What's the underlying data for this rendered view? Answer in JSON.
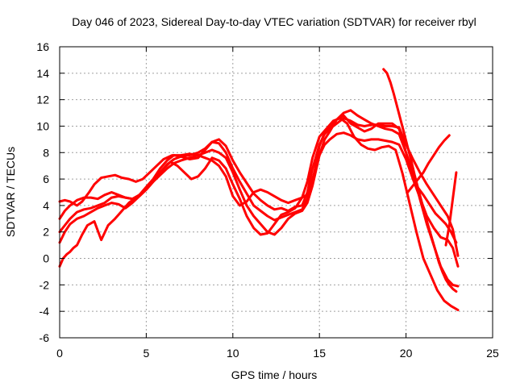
{
  "chart_data": {
    "type": "line",
    "title": "Day 046 of 2023, Sidereal Day-to-day VTEC variation (SDTVAR) for receiver rbyl",
    "xlabel": "GPS time / hours",
    "ylabel": "SDTVAR / TECUs",
    "xlim": [
      0,
      25
    ],
    "ylim": [
      -6,
      16
    ],
    "xticks": [
      0,
      5,
      10,
      15,
      20,
      25
    ],
    "yticks": [
      -6,
      -4,
      -2,
      0,
      2,
      4,
      6,
      8,
      10,
      12,
      14,
      16
    ],
    "grid": true,
    "legend": "none",
    "color": "#ff0000",
    "series": [
      {
        "x": [
          0.0,
          0.3,
          0.6,
          1.0,
          1.3,
          1.7,
          2.0,
          2.4,
          2.8,
          3.2,
          3.6,
          4.0,
          4.4,
          4.8,
          5.2,
          5.6,
          6.0,
          6.5,
          7.0,
          7.5,
          8.0,
          8.4,
          8.8,
          9.2,
          9.6,
          10.0,
          10.4,
          10.8,
          11.2,
          11.6,
          12.0,
          12.4,
          12.8,
          13.2,
          13.6,
          14.0,
          14.4,
          14.7,
          15.0,
          15.3,
          15.6,
          16.0,
          16.4,
          16.8,
          17.2,
          17.6,
          18.0,
          18.4,
          18.8,
          19.2,
          19.6,
          20.0,
          20.3,
          20.6,
          21.0,
          21.4,
          21.7,
          22.0,
          22.3,
          22.6,
          22.9
        ],
        "y": [
          4.3,
          4.4,
          4.3,
          4.0,
          4.3,
          5.0,
          5.6,
          6.1,
          6.2,
          6.3,
          6.1,
          6.0,
          5.8,
          6.0,
          6.5,
          7.0,
          7.5,
          7.8,
          7.8,
          7.9,
          7.8,
          7.6,
          7.4,
          7.0,
          6.2,
          4.7,
          4.0,
          4.3,
          5.0,
          5.2,
          5.0,
          4.7,
          4.4,
          4.2,
          4.4,
          4.6,
          4.9,
          6.5,
          8.5,
          9.5,
          10.0,
          10.5,
          10.8,
          10.2,
          9.9,
          9.6,
          9.8,
          10.2,
          10.2,
          10.2,
          9.8,
          8.0,
          6.5,
          5.5,
          4.8,
          4.0,
          3.4,
          3.0,
          2.6,
          2.0,
          1.2
        ]
      },
      {
        "x": [
          0.0,
          0.3,
          0.6,
          1.0,
          1.4,
          1.8,
          2.2,
          2.6,
          3.0,
          3.4,
          3.8,
          4.2,
          4.6,
          5.0,
          5.4,
          5.8,
          6.2,
          6.6,
          7.0,
          7.5,
          8.0,
          8.4,
          8.8,
          9.2,
          9.6,
          10.0,
          10.4,
          10.8,
          11.2,
          11.6,
          12.0,
          12.4,
          12.8,
          13.2,
          13.6,
          14.0,
          14.3,
          14.6,
          15.0,
          15.3,
          15.6,
          16.0,
          16.4,
          16.8,
          17.2,
          17.6,
          18.0,
          18.4,
          18.8,
          19.2,
          19.6,
          20.0,
          20.4,
          20.8,
          21.2,
          21.6,
          22.0,
          22.4,
          22.7,
          23.0
        ],
        "y": [
          3.0,
          3.6,
          4.0,
          4.4,
          4.6,
          4.6,
          4.5,
          4.8,
          5.0,
          4.8,
          4.6,
          4.5,
          4.7,
          5.2,
          5.8,
          6.5,
          7.1,
          7.5,
          7.7,
          7.8,
          8.0,
          8.3,
          8.8,
          8.7,
          8.0,
          6.8,
          5.8,
          4.9,
          4.0,
          3.6,
          3.2,
          2.9,
          3.1,
          3.3,
          3.5,
          3.7,
          4.5,
          6.0,
          7.8,
          8.6,
          9.0,
          9.4,
          9.5,
          9.3,
          9.0,
          8.9,
          9.0,
          9.0,
          8.9,
          8.8,
          8.6,
          7.5,
          6.0,
          4.6,
          3.2,
          2.3,
          1.6,
          1.4,
          0.8,
          -0.6
        ]
      },
      {
        "x": [
          0.0,
          0.3,
          0.6,
          1.0,
          1.4,
          1.8,
          2.2,
          2.6,
          3.0,
          3.4,
          3.8,
          4.2,
          4.6,
          5.0,
          5.4,
          5.8,
          6.2,
          6.6,
          7.0,
          7.5,
          8.0,
          8.4,
          8.8,
          9.2,
          9.6,
          10.0,
          10.4,
          10.8,
          11.2,
          11.6,
          12.0,
          12.4,
          12.8,
          13.2,
          13.6,
          14.0,
          14.3,
          14.6,
          15.0,
          15.3,
          15.6,
          16.0,
          16.4,
          16.8,
          17.2,
          17.6,
          18.0,
          18.4,
          18.8,
          19.2,
          19.6,
          20.0,
          20.4,
          20.8,
          21.2,
          21.6,
          22.0,
          22.4,
          22.7,
          23.0
        ],
        "y": [
          2.0,
          2.5,
          3.0,
          3.5,
          3.7,
          3.8,
          4.0,
          4.2,
          4.6,
          4.7,
          4.6,
          4.5,
          4.8,
          5.4,
          6.0,
          6.8,
          7.4,
          7.8,
          7.7,
          7.5,
          7.6,
          8.2,
          8.8,
          9.0,
          8.5,
          7.4,
          6.5,
          5.7,
          4.9,
          4.4,
          4.0,
          3.7,
          3.8,
          3.6,
          3.9,
          4.0,
          5.0,
          6.8,
          8.6,
          9.4,
          9.8,
          10.2,
          10.6,
          10.4,
          10.1,
          10.0,
          10.1,
          10.1,
          10.0,
          10.0,
          9.9,
          8.6,
          7.5,
          6.5,
          5.6,
          4.8,
          4.0,
          3.2,
          2.2,
          0.2
        ]
      },
      {
        "x": [
          0.0,
          0.3,
          0.6,
          1.0,
          1.4,
          1.8,
          2.2,
          2.6,
          3.0,
          3.4,
          3.8,
          4.2,
          4.6,
          5.0,
          5.4,
          5.8,
          6.2,
          6.6,
          7.0,
          7.5,
          8.0,
          8.4,
          8.8,
          9.2,
          9.6,
          10.0,
          10.4,
          10.8,
          11.2,
          11.6,
          12.0,
          12.4,
          12.8,
          13.2,
          13.6,
          14.0,
          14.3,
          14.6,
          15.0,
          15.3,
          15.6,
          16.0,
          16.4,
          16.8,
          17.2,
          17.6,
          18.0,
          18.4,
          18.8,
          19.2,
          19.6,
          20.0,
          20.4,
          20.8,
          21.2,
          21.6,
          22.0,
          22.4,
          22.7,
          23.0
        ],
        "y": [
          1.2,
          2.0,
          2.6,
          3.0,
          3.2,
          3.5,
          3.8,
          4.0,
          4.2,
          4.1,
          3.8,
          4.2,
          4.7,
          5.2,
          5.8,
          6.3,
          6.8,
          7.2,
          7.4,
          7.6,
          7.8,
          8.0,
          8.2,
          8.0,
          7.6,
          6.5,
          5.2,
          4.0,
          3.2,
          2.6,
          2.0,
          1.8,
          2.3,
          3.0,
          3.4,
          3.6,
          4.2,
          5.5,
          7.8,
          9.0,
          9.6,
          10.5,
          11.0,
          11.2,
          10.8,
          10.5,
          10.2,
          10.0,
          9.8,
          9.7,
          9.4,
          8.0,
          6.5,
          4.5,
          2.6,
          1.0,
          -0.6,
          -1.6,
          -2.0,
          -2.1
        ]
      },
      {
        "x": [
          0.0,
          0.2,
          0.4,
          0.6,
          0.8,
          1.0,
          1.3,
          1.6,
          2.0,
          2.4,
          2.8,
          3.2,
          3.6,
          4.0,
          4.4,
          4.8,
          5.2,
          5.6,
          6.0,
          6.4,
          6.8,
          7.2,
          7.6,
          8.0,
          8.4,
          8.8,
          9.2,
          9.6,
          10.0,
          10.4,
          10.8,
          11.2,
          11.6,
          12.0,
          12.4,
          12.8,
          13.2,
          13.6,
          14.0,
          14.3,
          14.6,
          15.0,
          15.4,
          15.8,
          16.2,
          16.6,
          17.0,
          17.4,
          17.8,
          18.2,
          18.6,
          19.0,
          19.4,
          19.8,
          20.2,
          20.6,
          21.0,
          21.4,
          21.8,
          22.2,
          22.6,
          23.0
        ],
        "y": [
          -0.6,
          0.0,
          0.3,
          0.5,
          0.8,
          1.0,
          1.8,
          2.5,
          2.8,
          1.4,
          2.5,
          3.0,
          3.6,
          4.2,
          4.6,
          5.0,
          5.6,
          6.2,
          6.8,
          7.3,
          7.0,
          6.5,
          6.0,
          6.2,
          6.8,
          7.6,
          7.4,
          6.8,
          5.6,
          4.5,
          3.2,
          2.3,
          1.8,
          1.9,
          2.6,
          3.3,
          3.5,
          3.8,
          4.6,
          5.8,
          7.6,
          9.2,
          9.8,
          10.4,
          10.6,
          10.2,
          9.2,
          8.6,
          8.3,
          8.2,
          8.4,
          8.5,
          8.2,
          6.4,
          4.2,
          2.0,
          0.0,
          -1.2,
          -2.4,
          -3.2,
          -3.6,
          -3.9
        ]
      },
      {
        "x": [
          18.7,
          18.9,
          19.1,
          19.3,
          19.5,
          19.7,
          19.9,
          20.1,
          20.3,
          20.5,
          20.7,
          20.9,
          21.1,
          21.3,
          21.5,
          21.7,
          21.9,
          22.1,
          22.3,
          22.5,
          22.7,
          22.9
        ],
        "y": [
          14.3,
          14.0,
          13.3,
          12.4,
          11.4,
          10.4,
          9.4,
          8.4,
          7.4,
          6.3,
          5.3,
          4.3,
          3.3,
          2.4,
          1.5,
          0.6,
          -0.3,
          -1.0,
          -1.6,
          -2.0,
          -2.3,
          -2.5
        ]
      },
      {
        "x": [
          20.1,
          20.4,
          20.7,
          21.0,
          21.3,
          21.6,
          21.9,
          22.2,
          22.5
        ],
        "y": [
          5.0,
          5.5,
          6.0,
          6.5,
          7.2,
          7.8,
          8.4,
          8.9,
          9.3
        ]
      },
      {
        "x": [
          22.3,
          22.5,
          22.7,
          22.9
        ],
        "y": [
          1.0,
          2.5,
          4.5,
          6.5
        ]
      }
    ]
  }
}
